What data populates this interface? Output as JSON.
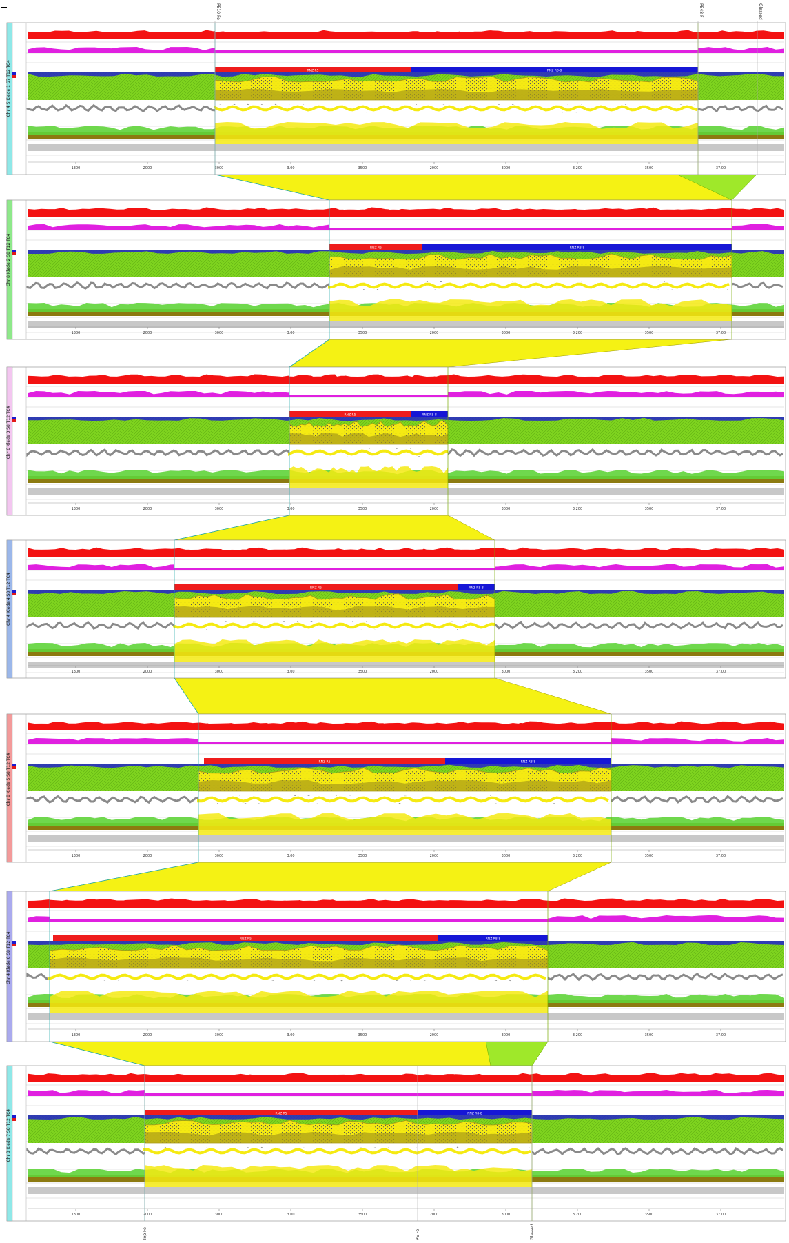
{
  "markers_top": [
    "PE10 Fe",
    "PE48 F",
    "Glassed"
  ],
  "markers_bottom": [
    "Top Fe",
    "PE Fe",
    "Glassed"
  ],
  "panels": [
    {
      "label": "Chr 4 5 Klede 1 S7 T12 TC4",
      "side_color": "#8fe8e8",
      "bars": [
        {
          "label": "RNZ R5",
          "color": "#ef1c1c"
        },
        {
          "label": "RNZ R8-8",
          "color": "#1616d6"
        }
      ]
    },
    {
      "label": "Chr 8 Klede 2 S8 T12 TC4",
      "side_color": "#8ee88a",
      "bars": [
        {
          "label": "RNZ R5",
          "color": "#ef1c1c"
        },
        {
          "label": "RNZ R8-8",
          "color": "#1616d6"
        }
      ]
    },
    {
      "label": "Chr 6 Klede 3 S8 T12 TC4",
      "side_color": "#f3c6f0",
      "bars": [
        {
          "label": "RNZ R5",
          "color": "#ef1c1c"
        },
        {
          "label": "RNZ R8-8",
          "color": "#1616d6"
        }
      ]
    },
    {
      "label": "Chr 4 Klede 4 S8 T12 TC4",
      "side_color": "#9bb7ea",
      "bars": [
        {
          "label": "RNZ R5",
          "color": "#ef1c1c"
        },
        {
          "label": "RNZ R8-8",
          "color": "#1616d6"
        }
      ]
    },
    {
      "label": "Chr 8 Klede 5 S8 T12 TC4",
      "side_color": "#f39a9a",
      "bars": [
        {
          "label": "RNZ R5",
          "color": "#ef1c1c"
        },
        {
          "label": "RNZ R8-8",
          "color": "#1616d6"
        }
      ]
    },
    {
      "label": "Chr 4 Klede 6 S8 T12 TC4",
      "side_color": "#aaaaee",
      "bars": [
        {
          "label": "RNZ R5",
          "color": "#ef1c1c"
        },
        {
          "label": "RNZ R8-8",
          "color": "#1616d6"
        }
      ]
    },
    {
      "label": "Chr 8 Klede 7 S8 T12 TC4",
      "side_color": "#8fe8e8",
      "bars": [
        {
          "label": "RNZ R5",
          "color": "#ef1c1c"
        },
        {
          "label": "RNZ R8-8",
          "color": "#1616d6"
        }
      ]
    }
  ],
  "axis_ticks": [
    "1300",
    "2000",
    "3000",
    "3.00",
    "3500",
    "2000",
    "3000",
    "3.200",
    "3500",
    "37.00"
  ],
  "colors": {
    "red_track": "#f31212",
    "magenta_track": "#e020e0",
    "green_fill": "#7fd41f",
    "yellow_fill": "#f5ea12",
    "olive": "#a89a18",
    "grey": "#8a8a8a",
    "connector_fill": "#f5f214",
    "connector_green": "#9fe82a"
  }
}
